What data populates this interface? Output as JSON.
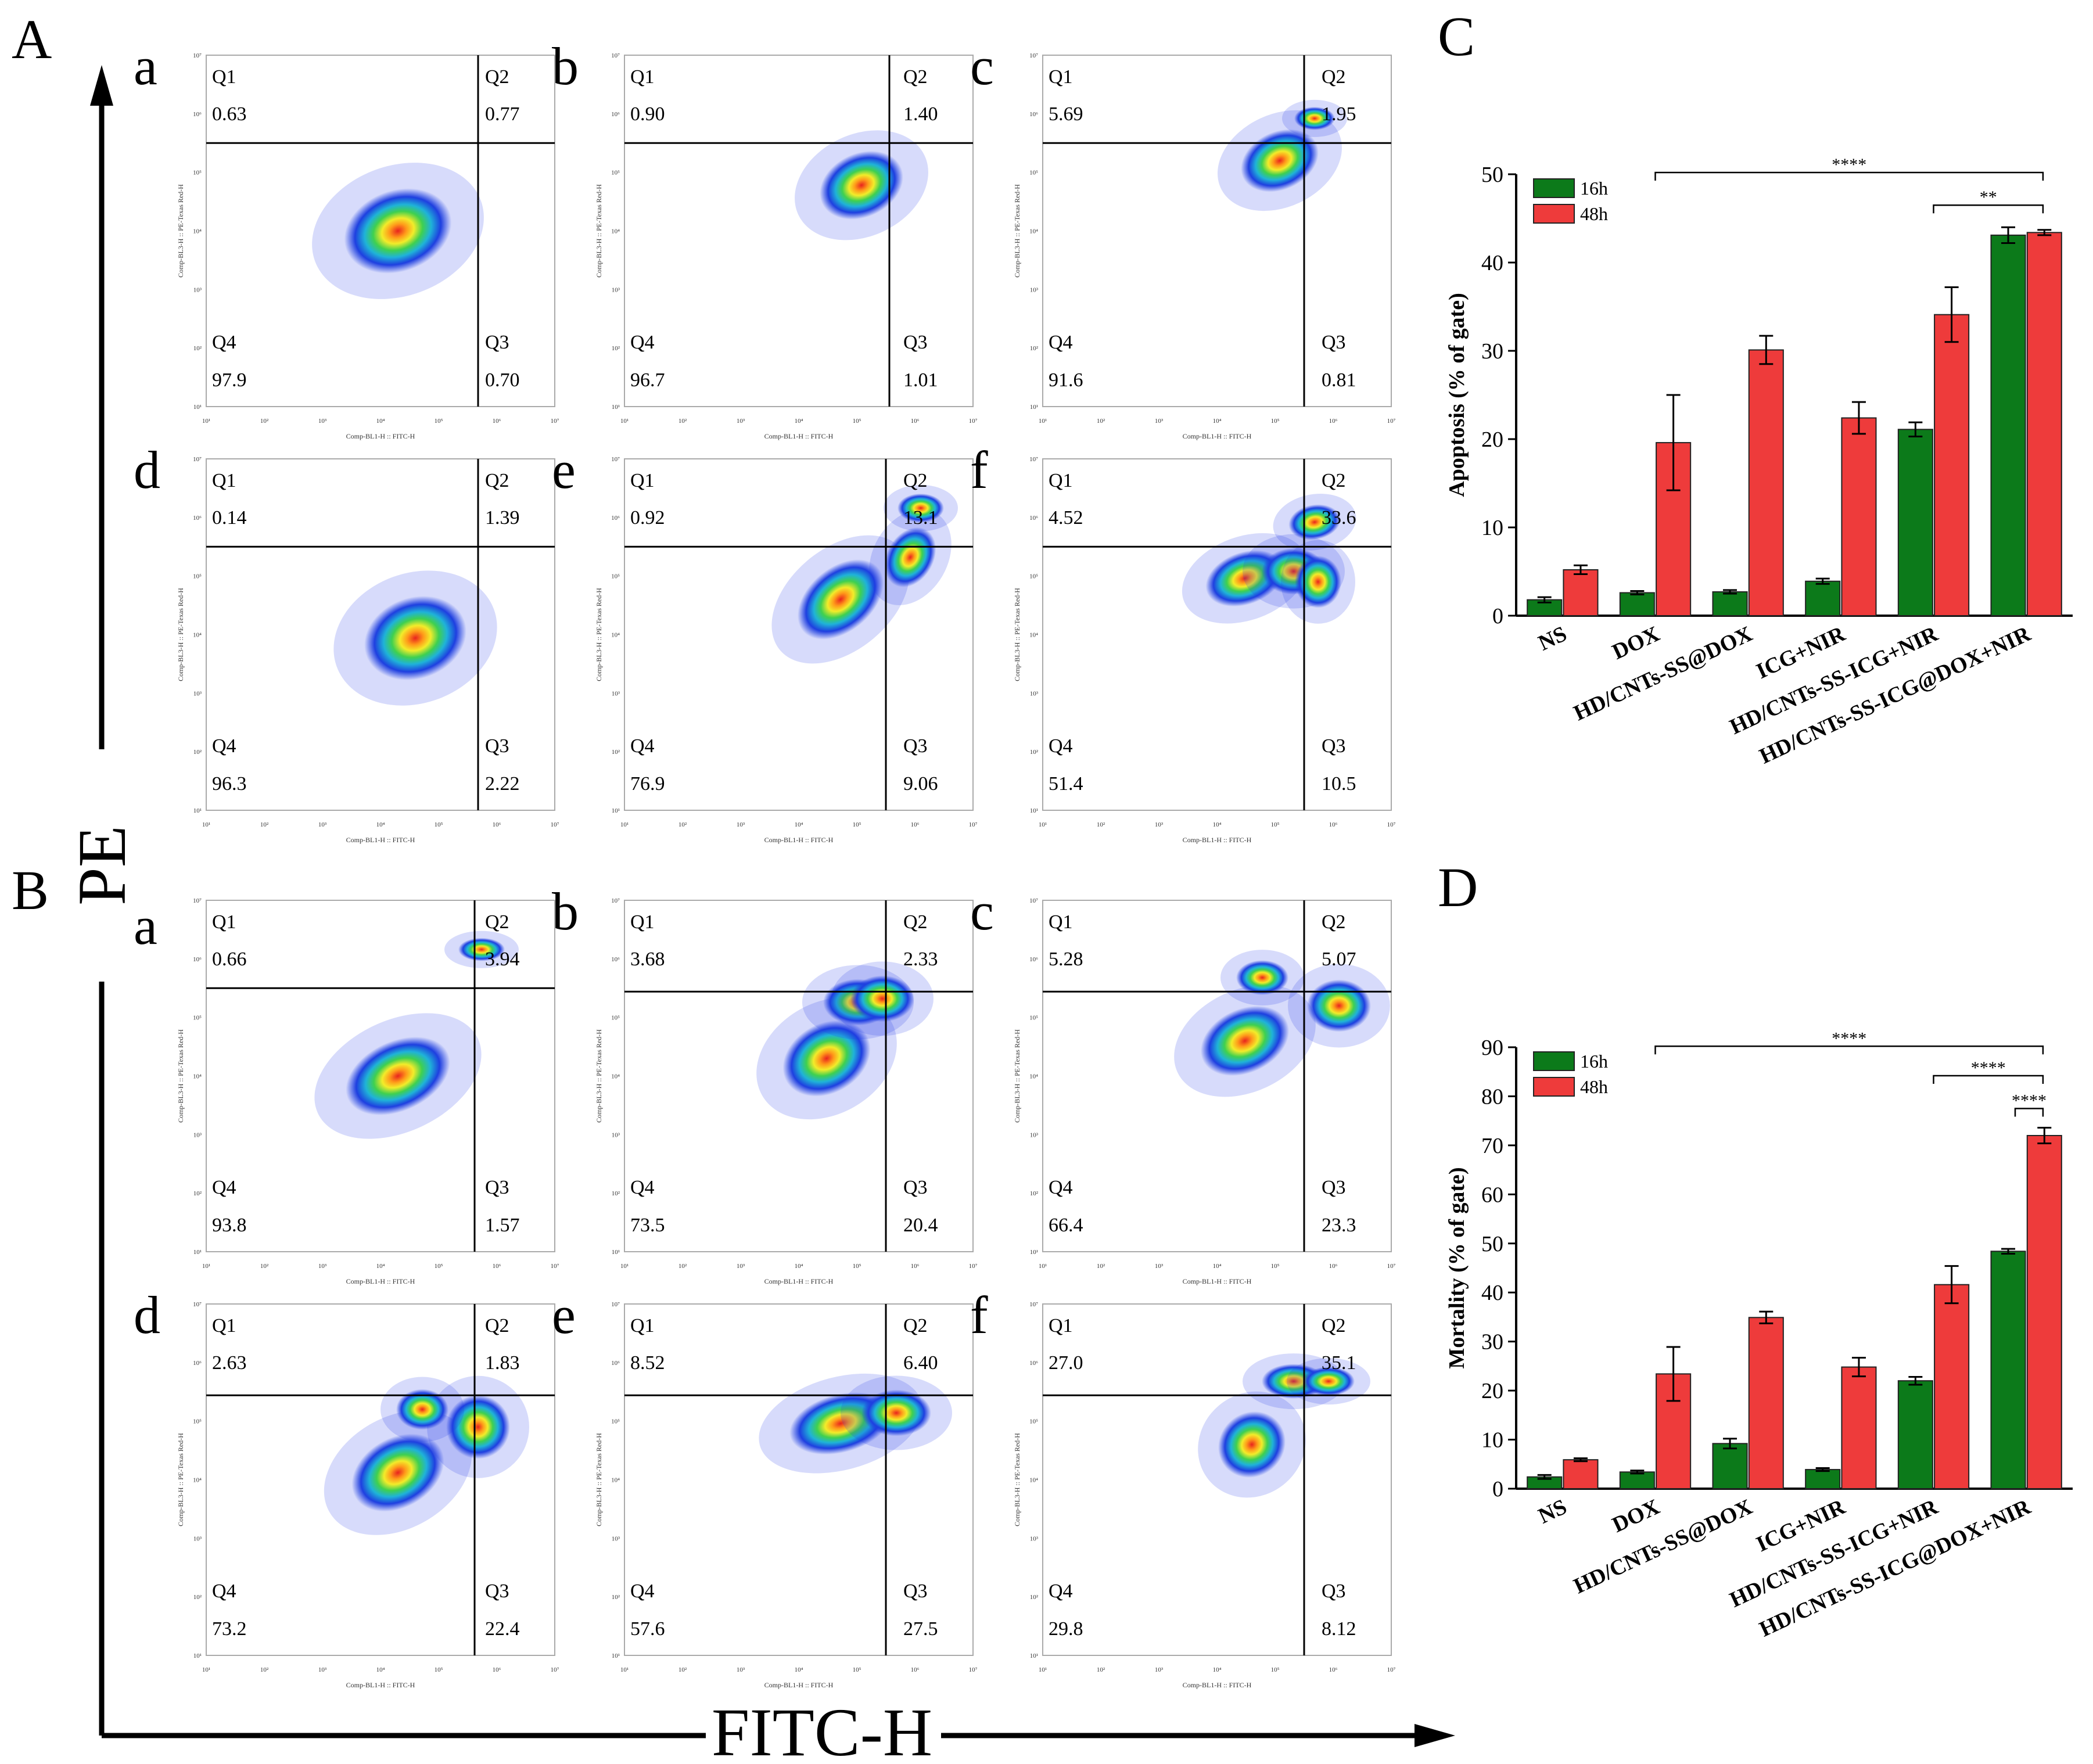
{
  "panel_letters": {
    "A": "A",
    "B": "B",
    "C": "C",
    "D": "D"
  },
  "axis_labels": {
    "y": "PE",
    "x": "FITC-H"
  },
  "flow_axis_tiny": {
    "y": "Comp-BL3-H :: PE-Texas Red-H",
    "x": "Comp-BL1-H :: FITC-H"
  },
  "flow_decades": [
    "10¹",
    "10²",
    "10³",
    "10⁴",
    "10⁵",
    "10⁶",
    "10⁷"
  ],
  "flow_panels": [
    {
      "group": "A",
      "letter": "a",
      "quadrants": {
        "Q1": "0.63",
        "Q2": "0.77",
        "Q3": "0.70",
        "Q4": "97.9"
      }
    },
    {
      "group": "A",
      "letter": "b",
      "quadrants": {
        "Q1": "0.90",
        "Q2": "1.40",
        "Q3": "1.01",
        "Q4": "96.7"
      }
    },
    {
      "group": "A",
      "letter": "c",
      "quadrants": {
        "Q1": "5.69",
        "Q2": "1.95",
        "Q3": "0.81",
        "Q4": "91.6"
      }
    },
    {
      "group": "A",
      "letter": "d",
      "quadrants": {
        "Q1": "0.14",
        "Q2": "1.39",
        "Q3": "2.22",
        "Q4": "96.3"
      }
    },
    {
      "group": "A",
      "letter": "e",
      "quadrants": {
        "Q1": "0.92",
        "Q2": "13.1",
        "Q3": "9.06",
        "Q4": "76.9"
      }
    },
    {
      "group": "A",
      "letter": "f",
      "quadrants": {
        "Q1": "4.52",
        "Q2": "33.6",
        "Q3": "10.5",
        "Q4": "51.4"
      }
    },
    {
      "group": "B",
      "letter": "a",
      "quadrants": {
        "Q1": "0.66",
        "Q2": "3.94",
        "Q3": "1.57",
        "Q4": "93.8"
      }
    },
    {
      "group": "B",
      "letter": "b",
      "quadrants": {
        "Q1": "3.68",
        "Q2": "2.33",
        "Q3": "20.4",
        "Q4": "73.5"
      }
    },
    {
      "group": "B",
      "letter": "c",
      "quadrants": {
        "Q1": "5.28",
        "Q2": "5.07",
        "Q3": "23.3",
        "Q4": "66.4"
      }
    },
    {
      "group": "B",
      "letter": "d",
      "quadrants": {
        "Q1": "2.63",
        "Q2": "1.83",
        "Q3": "22.4",
        "Q4": "73.2"
      }
    },
    {
      "group": "B",
      "letter": "e",
      "quadrants": {
        "Q1": "8.52",
        "Q2": "6.40",
        "Q3": "27.5",
        "Q4": "57.6"
      }
    },
    {
      "group": "B",
      "letter": "f",
      "quadrants": {
        "Q1": "27.0",
        "Q2": "35.1",
        "Q3": "8.12",
        "Q4": "29.8"
      }
    }
  ],
  "chart_data": [
    {
      "id": "C",
      "type": "bar",
      "title": "",
      "ylabel": "Apoptosis (% of gate)",
      "xlabel": "",
      "ylim": [
        0,
        50
      ],
      "yticks": [
        0,
        10,
        20,
        30,
        40,
        50
      ],
      "categories": [
        "NS",
        "DOX",
        "HD/CNTs-SS@DOX",
        "ICG+NIR",
        "HD/CNTs-SS-ICG+NIR",
        "HD/CNTs-SS-ICG@DOX+NIR"
      ],
      "series": [
        {
          "name": "16h",
          "color": "#0c7a1a",
          "values": [
            1.8,
            2.6,
            2.7,
            3.9,
            21.1,
            43.1
          ],
          "errors": [
            0.3,
            0.2,
            0.2,
            0.3,
            0.8,
            0.9
          ]
        },
        {
          "name": "48h",
          "color": "#ee3b3b",
          "values": [
            5.2,
            19.6,
            30.1,
            22.4,
            34.1,
            43.4
          ],
          "errors": [
            0.5,
            5.4,
            1.6,
            1.8,
            3.1,
            0.3
          ]
        }
      ],
      "legend": "top-left",
      "significance": [
        {
          "from": 1,
          "to": 5,
          "label": "****",
          "y": 50.2
        },
        {
          "from": 4,
          "to": 5,
          "label": "**",
          "y": 46.5
        }
      ]
    },
    {
      "id": "D",
      "type": "bar",
      "title": "",
      "ylabel": "Mortality (% of gate)",
      "xlabel": "",
      "ylim": [
        0,
        90
      ],
      "yticks": [
        0,
        10,
        20,
        30,
        40,
        50,
        60,
        70,
        80,
        90
      ],
      "categories": [
        "NS",
        "DOX",
        "HD/CNTs-SS@DOX",
        "ICG+NIR",
        "HD/CNTs-SS-ICG+NIR",
        "HD/CNTs-SS-ICG@DOX+NIR"
      ],
      "series": [
        {
          "name": "16h",
          "color": "#0c7a1a",
          "values": [
            2.4,
            3.4,
            9.2,
            3.9,
            22.0,
            48.4
          ],
          "errors": [
            0.4,
            0.3,
            1.0,
            0.3,
            0.8,
            0.5
          ]
        },
        {
          "name": "48h",
          "color": "#ee3b3b",
          "values": [
            5.9,
            23.4,
            34.9,
            24.8,
            41.6,
            72.0
          ],
          "errors": [
            0.3,
            5.5,
            1.2,
            1.9,
            3.8,
            1.6
          ]
        }
      ],
      "legend": "top-left",
      "significance": [
        {
          "from": 1,
          "to": 5,
          "label": "****",
          "y": 90.2
        },
        {
          "from": 4,
          "to": 5,
          "label": "****",
          "y": 84.2
        },
        {
          "from": 5,
          "to": 5.3,
          "label": "****",
          "y": 77.5
        }
      ]
    }
  ]
}
